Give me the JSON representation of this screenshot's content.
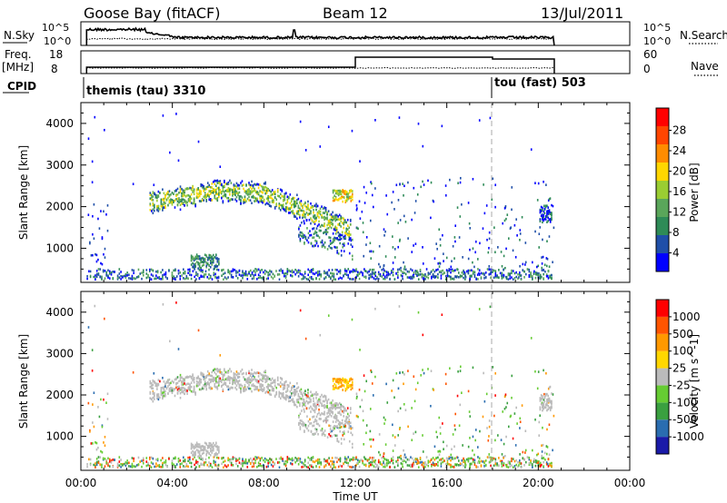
{
  "header": {
    "station": "Goose Bay (fitACF)",
    "beam": "Beam 12",
    "date": "13/Jul/2011"
  },
  "noise_panel": {
    "left_label": "N.Sky",
    "right_label": "N.Search",
    "left_ticks": [
      "10^5",
      "10^0"
    ],
    "right_ticks": [
      "10^5",
      "10^0"
    ]
  },
  "freq_panel": {
    "left_label_line1": "Freq.",
    "left_label_line2": "[MHz]",
    "right_label": "Nave",
    "left_ticks": [
      "18",
      "8"
    ],
    "right_ticks": [
      "60",
      "0"
    ]
  },
  "cpid": {
    "label": "CPID",
    "modes": [
      {
        "name": "themis (tau) 3310",
        "start_hour": 0.25
      },
      {
        "name": "tou (fast) 503",
        "start_hour": 18.0
      }
    ]
  },
  "colors": {
    "power": [
      "#0000ff",
      "#1f4fa8",
      "#2e8b57",
      "#5aa65a",
      "#9acd32",
      "#ffd700",
      "#ff8c00",
      "#ff4500",
      "#ff0000"
    ],
    "velocity": [
      "#1a1aa8",
      "#2a6db0",
      "#3aa040",
      "#66cc33",
      "#bbbbbb",
      "#ffd700",
      "#ff9900",
      "#ff5500",
      "#ff0000"
    ],
    "ground_scatter": "#bbbbbb"
  },
  "chart_data": [
    {
      "type": "heatmap",
      "name": "power",
      "ylabel": "Slant Range [km]",
      "yticks": [
        "1000",
        "2000",
        "3000",
        "4000"
      ],
      "ylim": [
        180,
        4500
      ],
      "xlim": [
        0,
        24
      ],
      "colorbar_label": "Power [dB]",
      "colorbar_ticks": [
        "4",
        "8",
        "12",
        "16",
        "20",
        "24",
        "28"
      ],
      "colorbar_range": [
        0,
        30
      ]
    },
    {
      "type": "heatmap",
      "name": "velocity",
      "ylabel": "Slant Range [km]",
      "yticks": [
        "1000",
        "2000",
        "3000",
        "4000"
      ],
      "ylim": [
        180,
        4500
      ],
      "xlim": [
        0,
        24
      ],
      "colorbar_label": "Velocity [m s^-1]",
      "colorbar_ticks": [
        "1000",
        "500",
        "100",
        "25",
        "-25",
        "-100",
        "-500",
        "-1000"
      ]
    }
  ],
  "xaxis": {
    "ticks": [
      "00:00",
      "04:00",
      "08:00",
      "12:00",
      "16:00",
      "20:00",
      "00:00"
    ],
    "label": "Time UT"
  }
}
